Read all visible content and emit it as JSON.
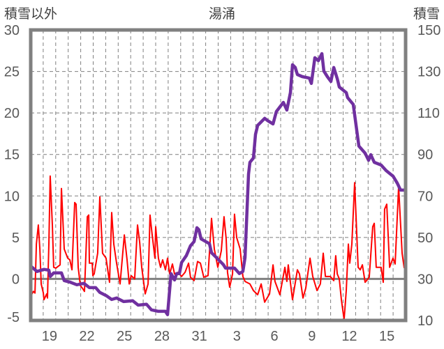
{
  "chart_data": {
    "type": "line",
    "title": "湯涌",
    "ylabel_left": "積雪以外",
    "ylabel_right": "積雪",
    "x_unit": "days since Jan 18 00:00",
    "xlim": [
      0,
      30
    ],
    "ylim_left": [
      -5,
      30
    ],
    "ylim_right": [
      10,
      150
    ],
    "yticks_left": [
      "-5",
      "0",
      "5",
      "10",
      "15",
      "20",
      "25",
      "30"
    ],
    "yticks_right": [
      "10",
      "30",
      "50",
      "70",
      "90",
      "110",
      "130",
      "150"
    ],
    "xtick_labels": [
      {
        "x": 1.5,
        "label": "19"
      },
      {
        "x": 4.5,
        "label": "22"
      },
      {
        "x": 7.5,
        "label": "25"
      },
      {
        "x": 10.5,
        "label": "28"
      },
      {
        "x": 13.5,
        "label": "31"
      },
      {
        "x": 16.5,
        "label": "3"
      },
      {
        "x": 19.5,
        "label": "6"
      },
      {
        "x": 22.5,
        "label": "9"
      },
      {
        "x": 25.5,
        "label": "12"
      },
      {
        "x": 28.5,
        "label": "15"
      }
    ],
    "grid": {
      "vertical": "daily dashed",
      "horizontal": "dashed at left major ticks"
    },
    "series": [
      {
        "name": "積雪以外",
        "axis": "left",
        "color": "#ff0000",
        "points": [
          [
            0.06,
            -1.9
          ],
          [
            0.22,
            -1.5
          ],
          [
            0.34,
            -1.7
          ],
          [
            0.45,
            4.2
          ],
          [
            0.61,
            6.5
          ],
          [
            0.73,
            3.6
          ],
          [
            0.84,
            -0.6
          ],
          [
            1.01,
            -1.7
          ],
          [
            1.06,
            -2.5
          ],
          [
            1.28,
            -1.8
          ],
          [
            1.34,
            -2.3
          ],
          [
            1.45,
            4.2
          ],
          [
            1.56,
            12.4
          ],
          [
            1.73,
            6.5
          ],
          [
            1.84,
            1.4
          ],
          [
            2.01,
            1.3
          ],
          [
            2.18,
            1.5
          ],
          [
            2.35,
            1.7
          ],
          [
            2.46,
            10.9
          ],
          [
            2.68,
            3.6
          ],
          [
            2.96,
            2.5
          ],
          [
            3.13,
            2.3
          ],
          [
            3.3,
            1.1
          ],
          [
            3.52,
            9.2
          ],
          [
            3.63,
            9.0
          ],
          [
            3.8,
            1.4
          ],
          [
            3.97,
            -0.8
          ],
          [
            4.13,
            -1.1
          ],
          [
            4.3,
            -1.5
          ],
          [
            4.53,
            7.5
          ],
          [
            4.64,
            7.7
          ],
          [
            4.69,
            1.9
          ],
          [
            4.92,
            1.9
          ],
          [
            4.97,
            0.4
          ],
          [
            5.08,
            0.6
          ],
          [
            5.36,
            3.1
          ],
          [
            5.53,
            9.9
          ],
          [
            5.75,
            3.1
          ],
          [
            6.03,
            2.5
          ],
          [
            6.31,
            -0.4
          ],
          [
            6.48,
            8.0
          ],
          [
            6.65,
            4.2
          ],
          [
            6.87,
            1.9
          ],
          [
            7.15,
            -0.6
          ],
          [
            7.49,
            5.3
          ],
          [
            7.71,
            2.3
          ],
          [
            7.88,
            -0.6
          ],
          [
            8.04,
            0.4
          ],
          [
            8.32,
            0.0
          ],
          [
            8.55,
            6.5
          ],
          [
            8.72,
            4.4
          ],
          [
            8.88,
            1.4
          ],
          [
            9.16,
            -1.8
          ],
          [
            9.39,
            -0.6
          ],
          [
            9.55,
            7.7
          ],
          [
            9.72,
            5.3
          ],
          [
            9.94,
            2.5
          ],
          [
            10.0,
            6.3
          ],
          [
            10.22,
            2.5
          ],
          [
            10.39,
            1.4
          ],
          [
            10.56,
            2.3
          ],
          [
            10.78,
            1.1
          ],
          [
            10.95,
            2.5
          ],
          [
            11.12,
            0.6
          ],
          [
            11.34,
            1.8
          ],
          [
            11.51,
            0.6
          ],
          [
            11.79,
            0.8
          ],
          [
            12.07,
            0.3
          ],
          [
            12.35,
            0.8
          ],
          [
            12.63,
            1.9
          ],
          [
            12.79,
            0.2
          ],
          [
            13.07,
            -0.2
          ],
          [
            13.35,
            2.1
          ],
          [
            13.58,
            1.9
          ],
          [
            13.85,
            0.2
          ],
          [
            14.19,
            0.4
          ],
          [
            14.47,
            7.3
          ],
          [
            14.69,
            3.6
          ],
          [
            14.97,
            1.4
          ],
          [
            15.25,
            3.4
          ],
          [
            15.47,
            7.5
          ],
          [
            15.64,
            4.8
          ],
          [
            15.75,
            0.8
          ],
          [
            15.92,
            -1.0
          ],
          [
            16.15,
            0.6
          ],
          [
            16.31,
            7.8
          ],
          [
            16.48,
            5.0
          ],
          [
            16.76,
            3.6
          ],
          [
            16.98,
            0.3
          ],
          [
            17.15,
            -0.3
          ],
          [
            17.54,
            -0.6
          ],
          [
            17.82,
            -1.4
          ],
          [
            18.16,
            -1.9
          ],
          [
            18.44,
            -0.6
          ],
          [
            18.72,
            -2.8
          ],
          [
            19.11,
            -1.8
          ],
          [
            19.39,
            1.7
          ],
          [
            19.55,
            -0.3
          ],
          [
            19.94,
            -1.9
          ],
          [
            20.34,
            1.4
          ],
          [
            20.5,
            -0.3
          ],
          [
            20.61,
            1.7
          ],
          [
            20.95,
            -2.5
          ],
          [
            21.34,
            1.1
          ],
          [
            21.51,
            0.6
          ],
          [
            21.79,
            -2.3
          ],
          [
            22.01,
            -1.1
          ],
          [
            22.35,
            2.5
          ],
          [
            22.57,
            0.3
          ],
          [
            22.91,
            -1.4
          ],
          [
            23.18,
            -0.6
          ],
          [
            23.41,
            3.1
          ],
          [
            23.58,
            0.3
          ],
          [
            23.97,
            0.3
          ],
          [
            24.25,
            -0.2
          ],
          [
            24.41,
            2.8
          ],
          [
            24.53,
            0.6
          ],
          [
            24.69,
            0.0
          ],
          [
            24.86,
            -2.5
          ],
          [
            25.08,
            -4.9
          ],
          [
            25.25,
            -1.4
          ],
          [
            25.42,
            4.2
          ],
          [
            25.53,
            1.9
          ],
          [
            25.7,
            4.2
          ],
          [
            25.92,
            11.6
          ],
          [
            26.2,
            1.4
          ],
          [
            26.37,
            1.1
          ],
          [
            26.54,
            1.7
          ],
          [
            26.76,
            -0.4
          ],
          [
            27.09,
            0.2
          ],
          [
            27.37,
            6.3
          ],
          [
            27.49,
            6.7
          ],
          [
            27.65,
            1.4
          ],
          [
            28.04,
            1.4
          ],
          [
            28.21,
            -0.4
          ],
          [
            28.32,
            8.4
          ],
          [
            28.49,
            9.0
          ],
          [
            28.72,
            1.4
          ],
          [
            28.99,
            2.5
          ],
          [
            29.16,
            1.8
          ],
          [
            29.44,
            11.1
          ],
          [
            29.72,
            3.1
          ],
          [
            29.89,
            1.3
          ]
        ]
      },
      {
        "name": "積雪",
        "axis": "right",
        "color": "#7030a0",
        "points": [
          [
            0.06,
            35.9
          ],
          [
            0.5,
            33.6
          ],
          [
            1.06,
            34.6
          ],
          [
            1.45,
            34.2
          ],
          [
            1.56,
            31.2
          ],
          [
            1.84,
            32.9
          ],
          [
            2.46,
            32.9
          ],
          [
            2.68,
            29.2
          ],
          [
            3.13,
            28.5
          ],
          [
            3.69,
            27.2
          ],
          [
            4.25,
            27.9
          ],
          [
            4.69,
            25.8
          ],
          [
            5.2,
            25.8
          ],
          [
            5.53,
            23.5
          ],
          [
            6.09,
            21.8
          ],
          [
            6.48,
            20.1
          ],
          [
            6.87,
            20.8
          ],
          [
            7.43,
            19.1
          ],
          [
            8.16,
            19.5
          ],
          [
            8.6,
            17.4
          ],
          [
            9.27,
            17.8
          ],
          [
            9.66,
            15.1
          ],
          [
            10.22,
            14.4
          ],
          [
            10.78,
            14.4
          ],
          [
            10.95,
            12.8
          ],
          [
            11.23,
            32.6
          ],
          [
            11.51,
            29.5
          ],
          [
            11.68,
            32.6
          ],
          [
            11.9,
            32.6
          ],
          [
            12.07,
            37.9
          ],
          [
            12.46,
            41.3
          ],
          [
            12.79,
            46.0
          ],
          [
            13.07,
            48.0
          ],
          [
            13.3,
            54.7
          ],
          [
            13.46,
            53.7
          ],
          [
            13.63,
            49.3
          ],
          [
            14.3,
            47.0
          ],
          [
            14.47,
            42.6
          ],
          [
            14.86,
            40.3
          ],
          [
            15.42,
            36.9
          ],
          [
            15.59,
            35.2
          ],
          [
            16.31,
            35.2
          ],
          [
            16.7,
            32.6
          ],
          [
            16.98,
            33.6
          ],
          [
            17.15,
            40.3
          ],
          [
            17.43,
            80.5
          ],
          [
            17.54,
            86.2
          ],
          [
            17.82,
            88.3
          ],
          [
            17.99,
            99.7
          ],
          [
            18.16,
            104.0
          ],
          [
            18.72,
            107.4
          ],
          [
            18.94,
            106.4
          ],
          [
            19.39,
            104.7
          ],
          [
            19.66,
            110.7
          ],
          [
            20.22,
            115.1
          ],
          [
            20.5,
            111.4
          ],
          [
            20.78,
            119.8
          ],
          [
            20.95,
            133.2
          ],
          [
            21.17,
            131.9
          ],
          [
            21.34,
            128.5
          ],
          [
            21.73,
            127.5
          ],
          [
            22.29,
            126.8
          ],
          [
            22.46,
            124.2
          ],
          [
            22.74,
            136.6
          ],
          [
            23.02,
            135.2
          ],
          [
            23.3,
            138.6
          ],
          [
            23.46,
            130.2
          ],
          [
            23.74,
            127.5
          ],
          [
            24.02,
            125.2
          ],
          [
            24.25,
            131.9
          ],
          [
            24.53,
            126.5
          ],
          [
            24.69,
            122.5
          ],
          [
            25.25,
            119.8
          ],
          [
            25.36,
            117.4
          ],
          [
            25.81,
            114.1
          ],
          [
            26.26,
            94.0
          ],
          [
            26.76,
            90.6
          ],
          [
            27.04,
            87.2
          ],
          [
            27.21,
            89.9
          ],
          [
            27.49,
            86.2
          ],
          [
            28.04,
            84.9
          ],
          [
            28.44,
            82.2
          ],
          [
            29.0,
            79.5
          ],
          [
            29.33,
            76.2
          ],
          [
            29.6,
            72.8
          ],
          [
            29.9,
            72.8
          ]
        ]
      }
    ]
  }
}
